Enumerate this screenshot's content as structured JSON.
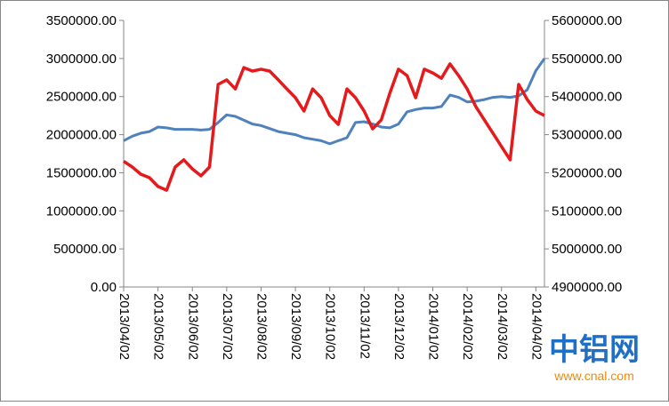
{
  "chart_data": {
    "type": "line",
    "categories": [
      "2013/04/02",
      null,
      null,
      null,
      "2013/05/02",
      null,
      null,
      null,
      "2013/06/02",
      null,
      null,
      null,
      "2013/07/02",
      null,
      null,
      null,
      "2013/08/02",
      null,
      null,
      null,
      "2013/09/02",
      null,
      null,
      null,
      "2013/10/02",
      null,
      null,
      null,
      "2013/11/02",
      null,
      null,
      null,
      "2013/12/02",
      null,
      null,
      null,
      "2014/01/02",
      null,
      null,
      null,
      "2014/02/02",
      null,
      null,
      null,
      "2014/03/02",
      null,
      null,
      null,
      "2014/04/02",
      null
    ],
    "series": [
      {
        "color": "#4f81bd",
        "axis": "y",
        "values": [
          1920000,
          1980000,
          2020000,
          2040000,
          2100000,
          2090000,
          2070000,
          2070000,
          2070000,
          2060000,
          2070000,
          2160000,
          2260000,
          2240000,
          2190000,
          2140000,
          2120000,
          2080000,
          2040000,
          2020000,
          2000000,
          1960000,
          1940000,
          1920000,
          1880000,
          1920000,
          1960000,
          2160000,
          2170000,
          2140000,
          2100000,
          2090000,
          2140000,
          2300000,
          2330000,
          2350000,
          2350000,
          2370000,
          2520000,
          2490000,
          2430000,
          2440000,
          2460000,
          2490000,
          2500000,
          2490000,
          2510000,
          2590000,
          2840000,
          3000000
        ]
      },
      {
        "color": "#e41a1c",
        "axis": "y2",
        "values": [
          5230000,
          5215000,
          5196000,
          5187000,
          5164000,
          5154000,
          5215000,
          5234000,
          5210000,
          5192000,
          5215000,
          5432000,
          5444000,
          5420000,
          5476000,
          5467000,
          5472000,
          5467000,
          5444000,
          5420000,
          5397000,
          5362000,
          5420000,
          5397000,
          5350000,
          5327000,
          5420000,
          5397000,
          5362000,
          5315000,
          5339000,
          5409000,
          5472000,
          5455000,
          5397000,
          5472000,
          5462000,
          5448000,
          5486000,
          5455000,
          5420000,
          5374000,
          5339000,
          5304000,
          5269000,
          5234000,
          5432000,
          5392000,
          5362000,
          5350000
        ]
      }
    ],
    "ylim": [
      0,
      3500000
    ],
    "yticks": [
      {
        "value": 0,
        "label": "0.00"
      },
      {
        "value": 500000,
        "label": "500000.00"
      },
      {
        "value": 1000000,
        "label": "1000000.00"
      },
      {
        "value": 1500000,
        "label": "1500000.00"
      },
      {
        "value": 2000000,
        "label": "2000000.00"
      },
      {
        "value": 2500000,
        "label": "2500000.00"
      },
      {
        "value": 3000000,
        "label": "3000000.00"
      },
      {
        "value": 3500000,
        "label": "3500000.00"
      }
    ],
    "y2lim": [
      4900000,
      5600000
    ],
    "y2ticks": [
      {
        "value": 4900000,
        "label": "4900000.00"
      },
      {
        "value": 5000000,
        "label": "5000000.00"
      },
      {
        "value": 5100000,
        "label": "5100000.00"
      },
      {
        "value": 5200000,
        "label": "5200000.00"
      },
      {
        "value": 5300000,
        "label": "5300000.00"
      },
      {
        "value": 5400000,
        "label": "5400000.00"
      },
      {
        "value": 5500000,
        "label": "5500000.00"
      },
      {
        "value": 5600000,
        "label": "5600000.00"
      }
    ],
    "grid": false
  },
  "watermark": {
    "brand": "中铝网",
    "url": "www.cnal.com"
  }
}
